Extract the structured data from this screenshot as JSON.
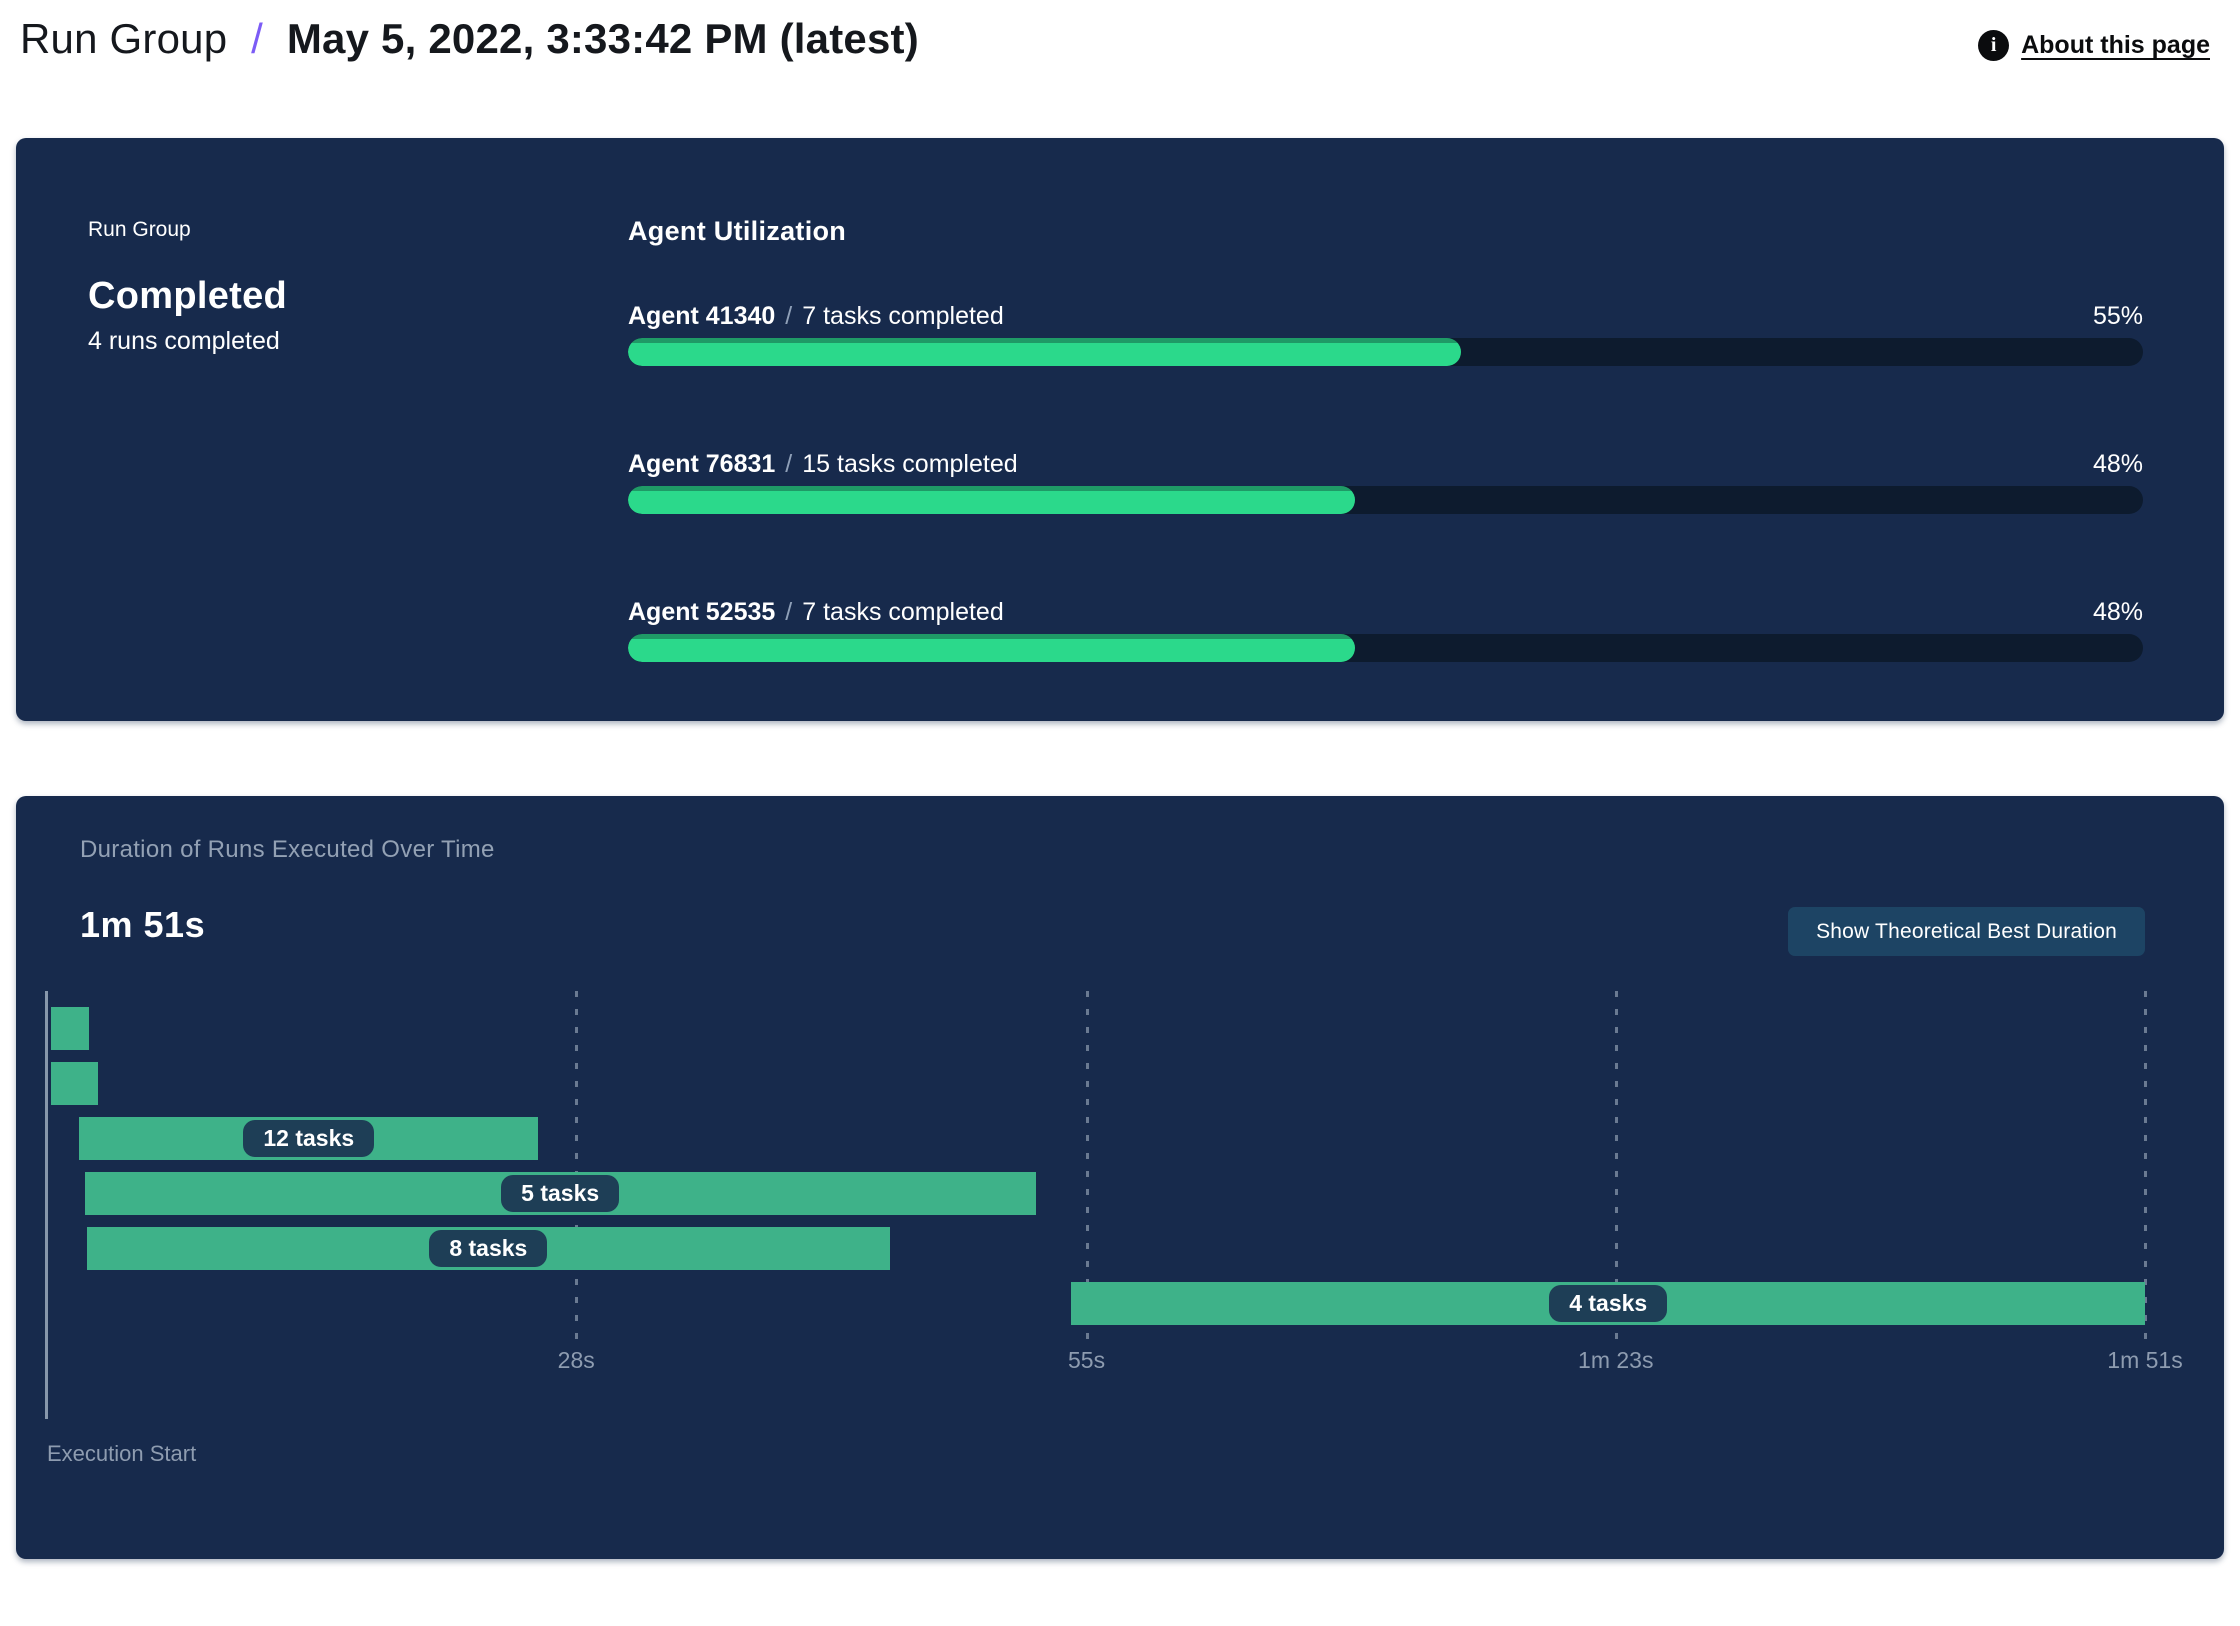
{
  "header": {
    "breadcrumb": "Run Group",
    "separator": "/",
    "title": "May 5, 2022, 3:33:42 PM (latest)",
    "about": {
      "label": "About this page",
      "icon": "info-icon",
      "icon_glyph": "i"
    }
  },
  "summary": {
    "group_label": "Run Group",
    "status": "Completed",
    "runs_completed": "4 runs completed"
  },
  "agent_utilization": {
    "heading": "Agent Utilization",
    "separator": "/",
    "agents": [
      {
        "name": "Agent 41340",
        "tasks": "7 tasks completed",
        "utilization": "55%",
        "utilization_pct": 55
      },
      {
        "name": "Agent 76831",
        "tasks": "15 tasks completed",
        "utilization": "48%",
        "utilization_pct": 48
      },
      {
        "name": "Agent 52535",
        "tasks": "7 tasks completed",
        "utilization": "48%",
        "utilization_pct": 48
      }
    ]
  },
  "duration_panel": {
    "title": "Duration of Runs Executed Over Time",
    "total_duration": "1m 51s",
    "button_label": "Show Theoretical Best Duration",
    "xlabel": "Execution Start"
  },
  "chart_data": {
    "type": "gantt",
    "title": "Duration of Runs Executed Over Time",
    "total_duration_label": "1m 51s",
    "x_axis_label": "Execution Start",
    "x_domain_seconds": [
      0,
      111
    ],
    "grid": "dashed-vertical",
    "x_ticks": [
      {
        "label": "28s",
        "seconds": 28
      },
      {
        "label": "55s",
        "seconds": 55
      },
      {
        "label": "1m 23s",
        "seconds": 83
      },
      {
        "label": "1m 51s",
        "seconds": 111
      }
    ],
    "runs": [
      {
        "row": 1,
        "start_s": 0.2,
        "end_s": 2.2,
        "label": ""
      },
      {
        "row": 2,
        "start_s": 0.2,
        "end_s": 2.7,
        "label": ""
      },
      {
        "row": 3,
        "start_s": 1.7,
        "end_s": 26.0,
        "label": "12 tasks"
      },
      {
        "row": 4,
        "start_s": 2.0,
        "end_s": 52.3,
        "label": "5 tasks"
      },
      {
        "row": 5,
        "start_s": 2.1,
        "end_s": 44.6,
        "label": "8 tasks"
      },
      {
        "row": 6,
        "start_s": 54.2,
        "end_s": 111,
        "label": "4 tasks"
      }
    ]
  },
  "colors": {
    "page_bg": "#ffffff",
    "card_bg": "#172a4c",
    "accent_purple": "#7c5cf6",
    "progress_green": "#2bd98b",
    "progress_green_dark": "#1f9a66",
    "progress_track": "#0d1b2e",
    "gantt_bar_green": "#3eb289",
    "pill_bg": "#1e3e56",
    "button_bg": "#1d4464",
    "muted_text": "#93a1b4",
    "axis_text": "#8e9cb0"
  }
}
